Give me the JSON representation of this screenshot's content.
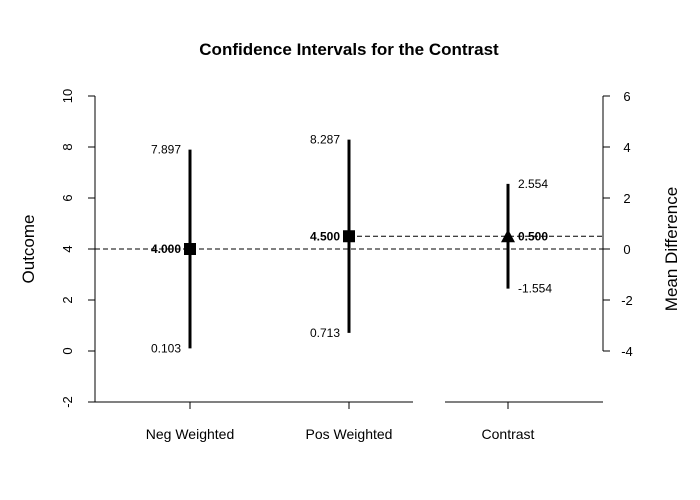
{
  "chart_data": {
    "type": "interval",
    "title": "Confidence Intervals for the Contrast",
    "left_axis": {
      "label": "Outcome",
      "ylim": [
        -2,
        10
      ],
      "ticks": [
        "-2",
        "0",
        "2",
        "4",
        "6",
        "8",
        "10"
      ]
    },
    "right_axis": {
      "label": "Mean Difference",
      "ylim": [
        -4,
        6
      ],
      "ticks": [
        "-4",
        "-2",
        "0",
        "2",
        "4",
        "6"
      ]
    },
    "categories": [
      "Neg Weighted",
      "Pos Weighted",
      "Contrast"
    ],
    "groups": [
      {
        "name": "Neg Weighted",
        "mean": 4.0,
        "lower": 0.103,
        "upper": 7.897,
        "mean_label": "4.000",
        "lower_label": "0.103",
        "upper_label": "7.897",
        "marker": "square"
      },
      {
        "name": "Pos Weighted",
        "mean": 4.5,
        "lower": 0.713,
        "upper": 8.287,
        "mean_label": "4.500",
        "lower_label": "0.713",
        "upper_label": "8.287",
        "marker": "square"
      }
    ],
    "contrast": {
      "name": "Contrast",
      "mean": 0.5,
      "lower": -1.554,
      "upper": 2.554,
      "mean_label": "0.500",
      "lower_label": "-1.554",
      "upper_label": "2.554",
      "marker": "triangle"
    },
    "reference_lines": [
      4.0,
      4.5
    ],
    "grid": false
  }
}
